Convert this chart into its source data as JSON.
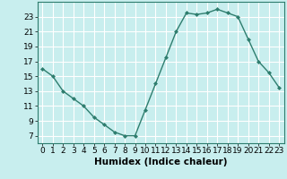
{
  "xlabel": "Humidex (Indice chaleur)",
  "x_values": [
    0,
    1,
    2,
    3,
    4,
    5,
    6,
    7,
    8,
    9,
    10,
    11,
    12,
    13,
    14,
    15,
    16,
    17,
    18,
    19,
    20,
    21,
    22,
    23
  ],
  "y_values": [
    16,
    15,
    13,
    12,
    11,
    9.5,
    8.5,
    7.5,
    7,
    7,
    10.5,
    14,
    17.5,
    21,
    23.5,
    23.3,
    23.5,
    24,
    23.5,
    23,
    20,
    17,
    15.5,
    13.5
  ],
  "ylim": [
    6,
    25
  ],
  "xlim": [
    -0.5,
    23.5
  ],
  "yticks": [
    7,
    9,
    11,
    13,
    15,
    17,
    19,
    21,
    23
  ],
  "xticks": [
    0,
    1,
    2,
    3,
    4,
    5,
    6,
    7,
    8,
    9,
    10,
    11,
    12,
    13,
    14,
    15,
    16,
    17,
    18,
    19,
    20,
    21,
    22,
    23
  ],
  "line_color": "#2e7d6e",
  "marker": "D",
  "marker_size": 2,
  "bg_color": "#c8eeee",
  "grid_color": "#b0dede",
  "line_width": 1.0,
  "tick_fontsize": 6.5,
  "xlabel_fontsize": 7.5
}
